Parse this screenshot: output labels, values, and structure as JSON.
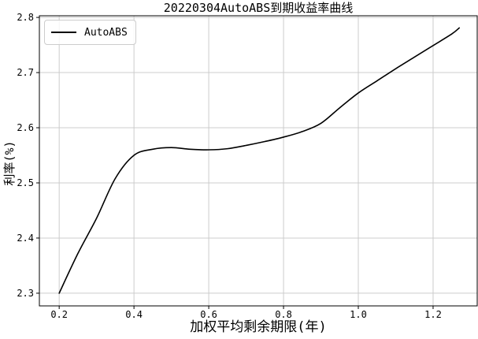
{
  "chart_data": {
    "type": "line",
    "title": "20220304AutoABS到期收益率曲线",
    "xlabel": "加权平均剩余期限(年)",
    "ylabel": "利率(%)",
    "legend": [
      "AutoABS"
    ],
    "legend_position": "upper left",
    "grid": true,
    "line_color": "#000000",
    "grid_color": "#cccccc",
    "spine_color": "#000000",
    "xlim": [
      0.147,
      1.318
    ],
    "ylim": [
      2.277,
      2.803
    ],
    "xticks": [
      0.2,
      0.4,
      0.6,
      0.8,
      1.0,
      1.2
    ],
    "xtick_labels": [
      "0.2",
      "0.4",
      "0.6",
      "0.8",
      "1.0",
      "1.2"
    ],
    "yticks": [
      2.3,
      2.4,
      2.5,
      2.6,
      2.7,
      2.8
    ],
    "ytick_labels": [
      "2.3",
      "2.4",
      "2.5",
      "2.6",
      "2.7",
      "2.8"
    ],
    "series": [
      {
        "name": "AutoABS",
        "x": [
          0.2,
          0.25,
          0.3,
          0.35,
          0.4,
          0.45,
          0.5,
          0.55,
          0.6,
          0.65,
          0.7,
          0.75,
          0.8,
          0.85,
          0.9,
          0.95,
          1.0,
          1.05,
          1.1,
          1.15,
          1.2,
          1.25,
          1.27
        ],
        "y": [
          2.3,
          2.372,
          2.436,
          2.508,
          2.55,
          2.561,
          2.564,
          2.561,
          2.56,
          2.562,
          2.568,
          2.575,
          2.583,
          2.593,
          2.608,
          2.636,
          2.663,
          2.685,
          2.707,
          2.728,
          2.749,
          2.77,
          2.781
        ]
      }
    ]
  }
}
